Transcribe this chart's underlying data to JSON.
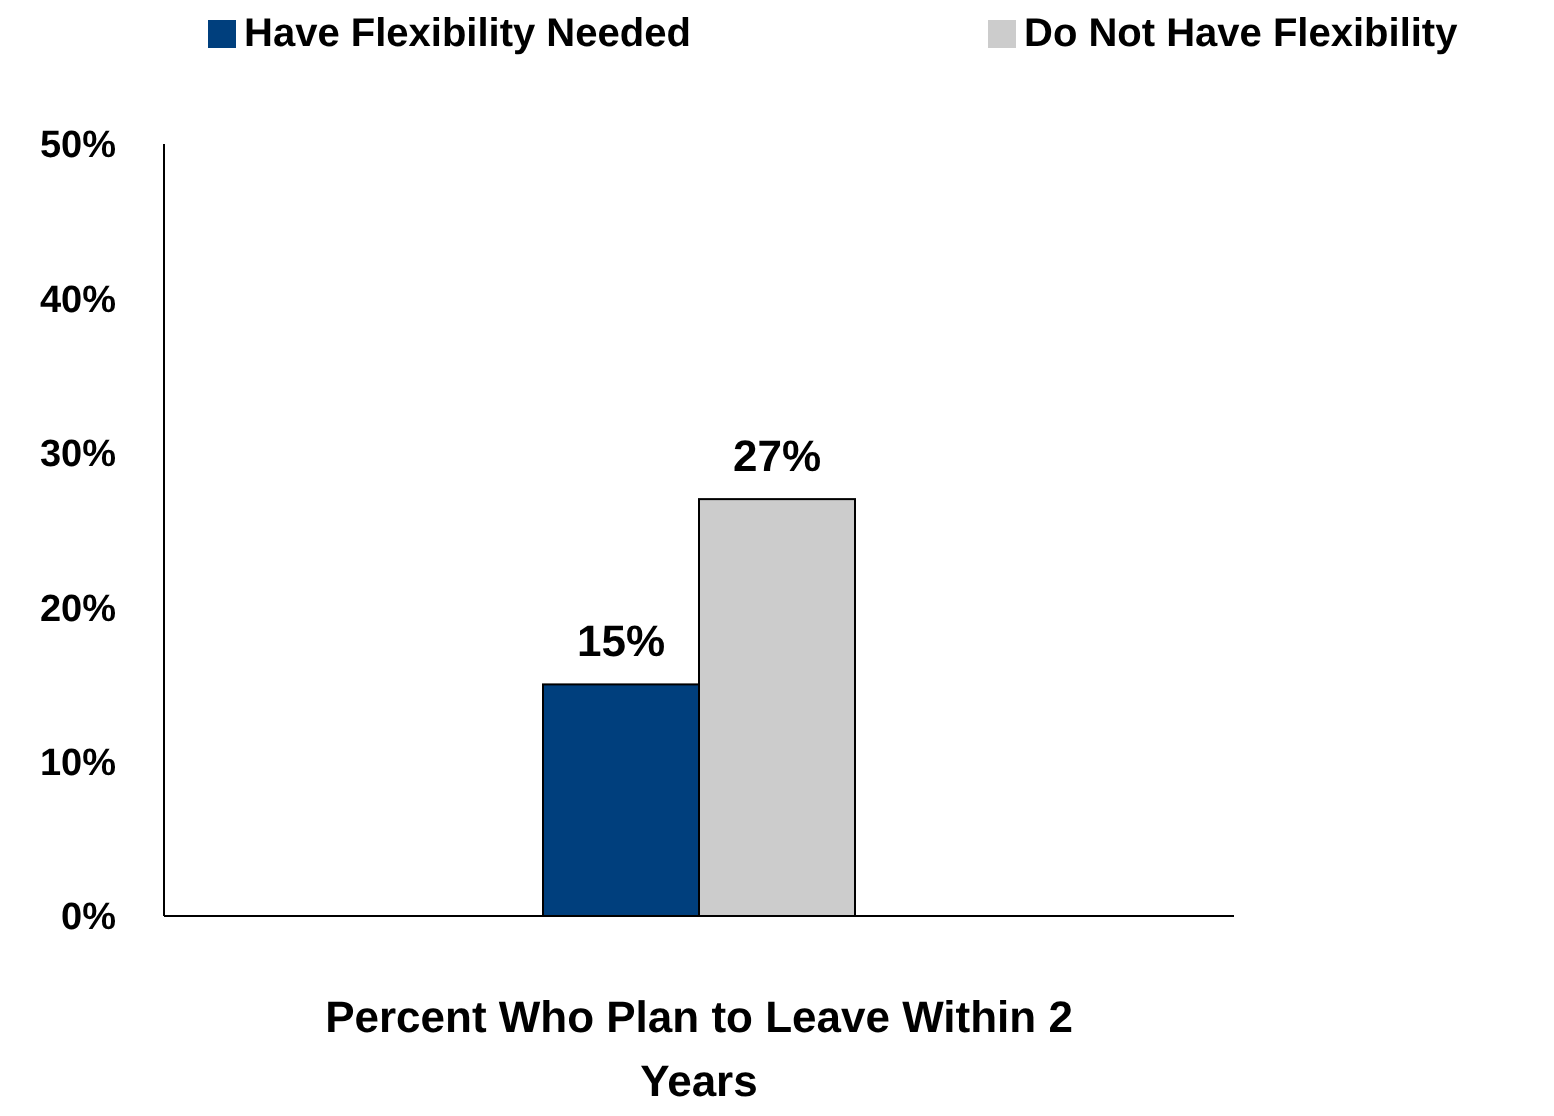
{
  "chart_data": {
    "type": "bar",
    "categories": [
      "Percent Who Plan to Leave Within 2 Years"
    ],
    "series": [
      {
        "name": "Have Flexibility Needed",
        "color": "#003f7d",
        "values": [
          15
        ],
        "value_labels": [
          "15%"
        ]
      },
      {
        "name": "Do Not Have Flexibility",
        "color": "#cccccc",
        "values": [
          27
        ],
        "value_labels": [
          "27%"
        ]
      }
    ],
    "ylim": [
      0,
      50
    ],
    "yticks": [
      {
        "value": 0,
        "label": "0%"
      },
      {
        "value": 10,
        "label": "10%"
      },
      {
        "value": 20,
        "label": "20%"
      },
      {
        "value": 30,
        "label": "30%"
      },
      {
        "value": 40,
        "label": "40%"
      },
      {
        "value": 50,
        "label": "50%"
      }
    ],
    "legend": "top",
    "grid": false
  }
}
